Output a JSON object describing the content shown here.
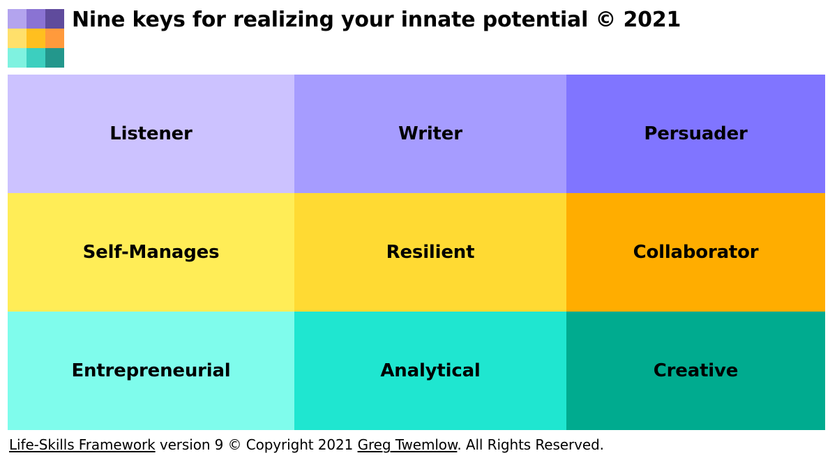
{
  "title": "Nine keys for realizing your innate potential © 2021",
  "logo": {
    "colors": [
      "#b3a4ee",
      "#8a73d3",
      "#5f4b9c",
      "#ffe06b",
      "#ffbf1f",
      "#ff9a3c",
      "#7ff2e0",
      "#3ccfbf",
      "#23978c"
    ]
  },
  "grid": {
    "cells": [
      {
        "label": "Listener",
        "color": "#ccc2ff"
      },
      {
        "label": "Writer",
        "color": "#a69cff"
      },
      {
        "label": "Persuader",
        "color": "#8075ff"
      },
      {
        "label": "Self-Manages",
        "color": "#ffed57"
      },
      {
        "label": "Resilient",
        "color": "#ffda33"
      },
      {
        "label": "Collaborator",
        "color": "#ffad00"
      },
      {
        "label": "Entrepreneurial",
        "color": "#7ffcec"
      },
      {
        "label": "Analytical",
        "color": "#1fe6d0"
      },
      {
        "label": "Creative",
        "color": "#00ab8f"
      }
    ]
  },
  "footer": {
    "link1": "Life-Skills Framework",
    "text1": " version 9 © Copyright 2021 ",
    "link2": "Greg Twemlow",
    "text2": ". All Rights Reserved."
  }
}
